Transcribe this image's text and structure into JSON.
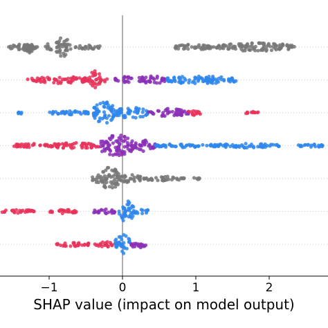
{
  "chart_data": {
    "type": "scatter",
    "title": "",
    "xlabel": "SHAP value (impact on model output)",
    "ylabel": "",
    "xlim": [
      -1.65,
      2.8
    ],
    "x_ticks": [
      {
        "value": -1,
        "label": "−1"
      },
      {
        "value": 0,
        "label": "0"
      },
      {
        "value": 1,
        "label": "1"
      },
      {
        "value": 2,
        "label": "2"
      }
    ],
    "zero_line": true,
    "grid": false,
    "legend": "none",
    "colors": {
      "low": "#e8325a",
      "high": "#2f86eb",
      "mid": "#8b30b6",
      "missing": "#777777"
    },
    "rows": [
      {
        "clusters": [
          {
            "from": -1.6,
            "to": -1.15,
            "color": "missing",
            "spread": 4
          },
          {
            "from": -1.35,
            "to": -1.18,
            "color": "missing",
            "spread": 9
          },
          {
            "from": -1.05,
            "to": -0.95,
            "color": "missing",
            "spread": 5
          },
          {
            "from": -0.92,
            "to": -0.7,
            "color": "missing",
            "spread": 14
          },
          {
            "from": -0.65,
            "to": -0.3,
            "color": "missing",
            "spread": 3
          },
          {
            "from": 0.7,
            "to": 1.3,
            "color": "missing",
            "spread": 4
          },
          {
            "from": 1.3,
            "to": 2.35,
            "color": "missing",
            "spread": 6
          }
        ]
      },
      {
        "clusters": [
          {
            "from": -1.3,
            "to": -0.45,
            "color": "low",
            "spread": 5
          },
          {
            "from": -0.45,
            "to": -0.3,
            "color": "low",
            "spread": 14
          },
          {
            "from": -0.3,
            "to": -0.2,
            "color": "low",
            "spread": 3
          },
          {
            "from": -0.1,
            "to": 0.15,
            "color": "mid",
            "spread": 5
          },
          {
            "from": 0.2,
            "to": 0.6,
            "color": "mid",
            "spread": 6
          },
          {
            "from": 0.6,
            "to": 1.55,
            "color": "high",
            "spread": 6
          }
        ]
      },
      {
        "clusters": [
          {
            "from": -1.42,
            "to": -1.32,
            "color": "high",
            "spread": 2
          },
          {
            "from": -1.05,
            "to": -0.45,
            "color": "high",
            "spread": 3
          },
          {
            "from": -0.4,
            "to": -0.1,
            "color": "high",
            "spread": 16
          },
          {
            "from": -0.1,
            "to": 0.35,
            "color": "high",
            "spread": 8
          },
          {
            "from": 0.35,
            "to": 0.9,
            "color": "mid",
            "spread": 6
          },
          {
            "from": 0.9,
            "to": 1.1,
            "color": "low",
            "spread": 4
          },
          {
            "from": 1.65,
            "to": 1.85,
            "color": "low",
            "spread": 2
          }
        ]
      },
      {
        "clusters": [
          {
            "from": -1.5,
            "to": -1.0,
            "color": "low",
            "spread": 3
          },
          {
            "from": -1.0,
            "to": -0.3,
            "color": "low",
            "spread": 4
          },
          {
            "from": -0.3,
            "to": 0.15,
            "color": "mid",
            "spread": 16
          },
          {
            "from": 0.15,
            "to": 0.45,
            "color": "mid",
            "spread": 8
          },
          {
            "from": 0.45,
            "to": 1.1,
            "color": "high",
            "spread": 3
          },
          {
            "from": 1.15,
            "to": 2.15,
            "color": "high",
            "spread": 3
          },
          {
            "from": 2.4,
            "to": 2.78,
            "color": "high",
            "spread": 2
          }
        ]
      },
      {
        "clusters": [
          {
            "from": -0.42,
            "to": -0.28,
            "color": "missing",
            "spread": 6
          },
          {
            "from": -0.28,
            "to": -0.05,
            "color": "missing",
            "spread": 18
          },
          {
            "from": -0.05,
            "to": 0.25,
            "color": "missing",
            "spread": 6
          },
          {
            "from": 0.25,
            "to": 0.85,
            "color": "missing",
            "spread": 3
          },
          {
            "from": 0.95,
            "to": 1.05,
            "color": "missing",
            "spread": 2
          }
        ]
      },
      {
        "clusters": [
          {
            "from": -1.65,
            "to": -1.2,
            "color": "low",
            "spread": 3
          },
          {
            "from": -1.0,
            "to": -0.6,
            "color": "low",
            "spread": 3
          },
          {
            "from": -0.4,
            "to": -0.1,
            "color": "mid",
            "spread": 4
          },
          {
            "from": -0.05,
            "to": 0.15,
            "color": "high",
            "spread": 16
          },
          {
            "from": 0.15,
            "to": 0.35,
            "color": "high",
            "spread": 4
          }
        ]
      },
      {
        "clusters": [
          {
            "from": -0.9,
            "to": -0.45,
            "color": "low",
            "spread": 3
          },
          {
            "from": -0.4,
            "to": -0.1,
            "color": "low",
            "spread": 4
          },
          {
            "from": -0.1,
            "to": 0.1,
            "color": "high",
            "spread": 14
          },
          {
            "from": 0.1,
            "to": 0.33,
            "color": "mid",
            "spread": 5
          }
        ]
      }
    ]
  }
}
